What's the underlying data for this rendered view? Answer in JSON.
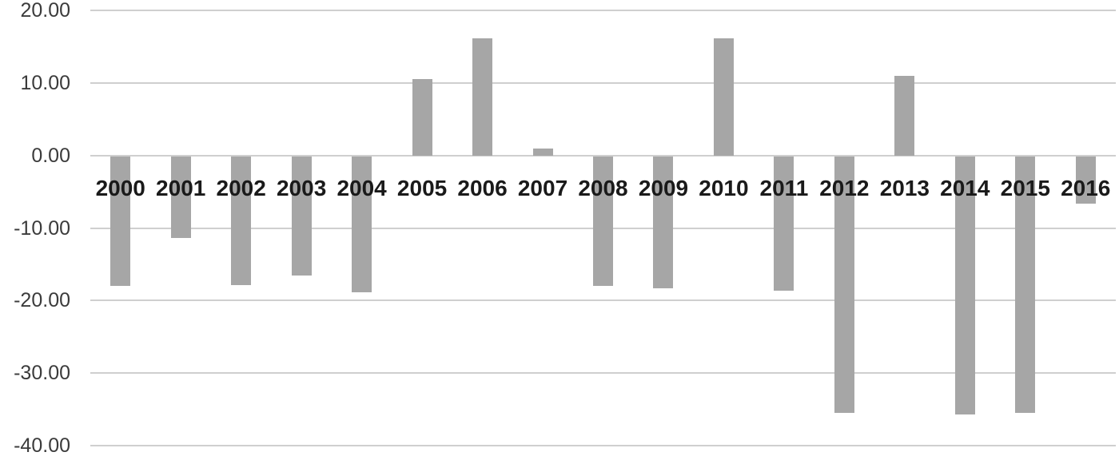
{
  "chart_data": {
    "type": "bar",
    "title": "",
    "xlabel": "",
    "ylabel": "",
    "categories": [
      "2000",
      "2001",
      "2002",
      "2003",
      "2004",
      "2005",
      "2006",
      "2007",
      "2008",
      "2009",
      "2010",
      "2011",
      "2012",
      "2013",
      "2014",
      "2015",
      "2016"
    ],
    "values": [
      -17.9,
      -11.2,
      -17.8,
      -16.4,
      -18.7,
      10.5,
      16.2,
      1.0,
      -17.9,
      -18.2,
      16.2,
      -18.5,
      -35.4,
      11.0,
      -35.6,
      -35.4,
      -6.5
    ],
    "ylim": [
      -40,
      20
    ],
    "yticks": [
      20,
      10,
      0,
      -10,
      -20,
      -30,
      -40
    ],
    "ytick_labels": [
      "20.00",
      "10.00",
      "0.00",
      "-10.00",
      "-20.00",
      "-30.00",
      "-40.00"
    ],
    "grid": true,
    "legend": "none",
    "colors": {
      "bar_fill": "#a6a6a6",
      "gridline": "#cfcfcf",
      "ytick_text": "#3b3b3b",
      "xtick_text": "#1a1a1a",
      "background": "#ffffff"
    }
  }
}
